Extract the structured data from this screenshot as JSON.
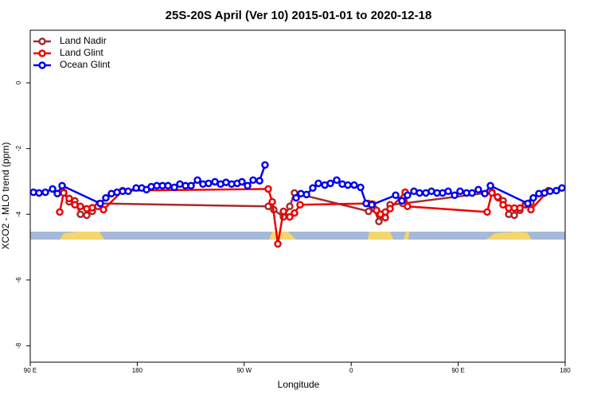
{
  "chart_data": {
    "type": "line",
    "title": "25S-20S April (Ver 10)   2015-01-01 to 2020-12-18",
    "xlabel": "Longitude",
    "ylabel": "XCO2 - MLO trend (ppm)",
    "xlim": [
      90,
      540
    ],
    "ylim": [
      -8.5,
      1.6
    ],
    "xticks": [
      {
        "value": 90,
        "label": "90 E"
      },
      180,
      {
        "value": 270,
        "label": "90 W"
      },
      {
        "value": 360,
        "label": "0"
      },
      {
        "value": 450,
        "label": "90 E"
      },
      {
        "value": 540,
        "label": "180"
      }
    ],
    "yticks": [
      0,
      -2,
      -4,
      -6,
      -8
    ],
    "legend": "top-left",
    "series": [
      {
        "name": "Land Nadir",
        "color": "#a52a2a",
        "x": [
          118.1,
          122.8,
          127.5,
          132.2,
          137.5,
          142.2,
          148.3,
          290.2,
          294.9,
          303,
          308.3,
          312.3,
          374.6,
          379.3,
          383.3,
          388.7,
          392.7,
          403.4,
          478.4,
          483.8,
          487.8,
          492.5,
          497.2,
          501.9,
          506.5,
          511.2
        ],
        "values": [
          -3.33,
          -3.62,
          -3.59,
          -4.0,
          -4.03,
          -3.91,
          -3.67,
          -3.76,
          -3.86,
          -4.08,
          -3.76,
          -3.35,
          -3.91,
          -3.83,
          -4.22,
          -3.93,
          -3.71,
          -3.67,
          -3.33,
          -3.5,
          -3.59,
          -4.0,
          -4.03,
          -3.88,
          -3.71,
          -3.64
        ]
      },
      {
        "name": "Land Glint",
        "color": "#ee0000",
        "x": [
          114.8,
          118.1,
          122.8,
          127.5,
          132.2,
          137.5,
          142.2,
          146.9,
          151.6,
          167.7,
          290.2,
          293.6,
          298.3,
          303,
          308.3,
          312.3,
          317,
          374.6,
          377.9,
          381.3,
          384.6,
          388.7,
          392.7,
          405.4,
          407.4,
          474.4,
          478.4,
          483.1,
          487.8,
          492.5,
          497.2,
          501.9,
          506.5,
          511.2,
          525.9
        ],
        "values": [
          -3.93,
          -3.35,
          -3.52,
          -3.71,
          -3.76,
          -3.83,
          -3.8,
          -3.76,
          -3.86,
          -3.28,
          -3.23,
          -3.62,
          -4.9,
          -3.91,
          -4.08,
          -3.96,
          -3.71,
          -3.67,
          -3.69,
          -3.88,
          -4.0,
          -4.1,
          -3.83,
          -3.33,
          -3.76,
          -3.93,
          -3.35,
          -3.47,
          -3.71,
          -3.81,
          -3.81,
          -3.81,
          -3.71,
          -3.86,
          -3.28
        ]
      },
      {
        "name": "Ocean Glint",
        "color": "#0000ee",
        "x": [
          92.7,
          97.4,
          102.7,
          108.8,
          112.8,
          116.8,
          148.9,
          153.6,
          158.3,
          163,
          167.7,
          172.4,
          179.1,
          183.8,
          187.8,
          191.8,
          196.5,
          201.2,
          205.9,
          211.2,
          215.9,
          220.6,
          225.3,
          230.7,
          235.3,
          240,
          245.4,
          250.1,
          254.7,
          259.4,
          264.1,
          268.1,
          272.8,
          277.5,
          282.9,
          287.5,
          null,
          313.7,
          317.7,
          322.4,
          327.7,
          332.4,
          337.8,
          342.5,
          347.8,
          352.5,
          357.2,
          362.5,
          367.9,
          372.6,
          377.3,
          397.4,
          402.7,
          407.4,
          412.8,
          417.5,
          422.8,
          427.5,
          432.2,
          436.9,
          441.6,
          447,
          451.6,
          457,
          461.7,
          467,
          472.4,
          477.1,
          508.5,
          513.2,
          517.9,
          522.6,
          527.3,
          532.6,
          537.3
        ],
        "values": [
          -3.33,
          -3.35,
          -3.33,
          -3.23,
          -3.37,
          -3.13,
          -3.67,
          -3.5,
          -3.37,
          -3.33,
          -3.3,
          -3.3,
          -3.2,
          -3.2,
          -3.25,
          -3.16,
          -3.13,
          -3.13,
          -3.13,
          -3.18,
          -3.08,
          -3.13,
          -3.13,
          -2.96,
          -3.08,
          -3.06,
          -3.01,
          -3.08,
          -3.03,
          -3.08,
          -3.06,
          -3.01,
          -3.13,
          -2.96,
          -2.98,
          -2.5,
          null,
          -3.5,
          -3.37,
          -3.4,
          -3.2,
          -3.06,
          -3.11,
          -3.06,
          -2.96,
          -3.08,
          -3.11,
          -3.11,
          -3.18,
          -3.67,
          -3.71,
          -3.42,
          -3.59,
          -3.42,
          -3.3,
          -3.35,
          -3.35,
          -3.3,
          -3.35,
          -3.35,
          -3.3,
          -3.42,
          -3.3,
          -3.35,
          -3.35,
          -3.25,
          -3.37,
          -3.13,
          -3.67,
          -3.5,
          -3.37,
          -3.35,
          -3.3,
          -3.28,
          -3.2
        ]
      }
    ]
  }
}
